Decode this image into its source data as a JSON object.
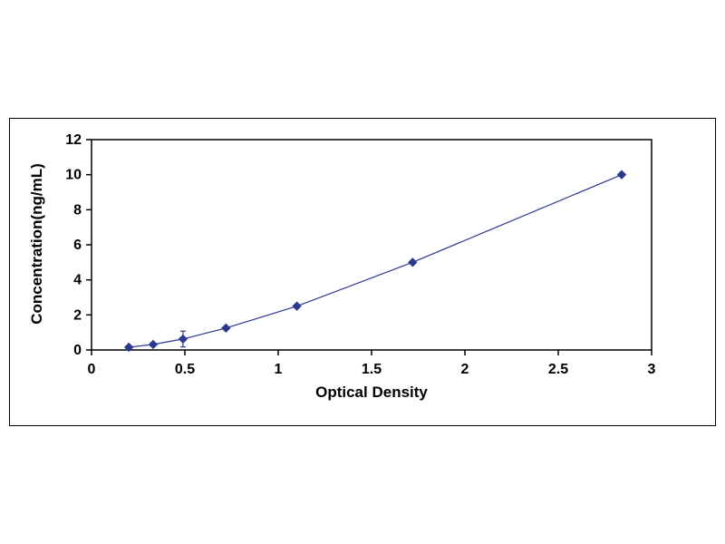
{
  "page": {
    "background_color": "#ffffff"
  },
  "chart_data": {
    "type": "line",
    "title": "",
    "xlabel": "Optical Density",
    "ylabel": "Concentration(ng/mL)",
    "x": [
      0.2,
      0.33,
      0.49,
      0.72,
      1.1,
      1.72,
      2.84
    ],
    "y": [
      0.156,
      0.313,
      0.625,
      1.25,
      2.5,
      5,
      10
    ],
    "xlim": [
      0,
      3
    ],
    "ylim": [
      0,
      12
    ],
    "x_ticks": [
      0,
      0.5,
      1,
      1.5,
      2,
      2.5,
      3
    ],
    "x_tick_labels": [
      "0",
      "0.5",
      "1",
      "1.5",
      "2",
      "2.5",
      "3"
    ],
    "y_ticks": [
      0,
      2,
      4,
      6,
      8,
      10,
      12
    ],
    "y_tick_labels": [
      "0",
      "2",
      "4",
      "6",
      "8",
      "10",
      "12"
    ],
    "grid": false,
    "legend": "none",
    "marker": "diamond",
    "line_color": "#2b3990",
    "marker_color": "#2b3990",
    "axis_color": "#000000",
    "error_bar": {
      "point_index": 2,
      "y_error": 0.45
    }
  }
}
